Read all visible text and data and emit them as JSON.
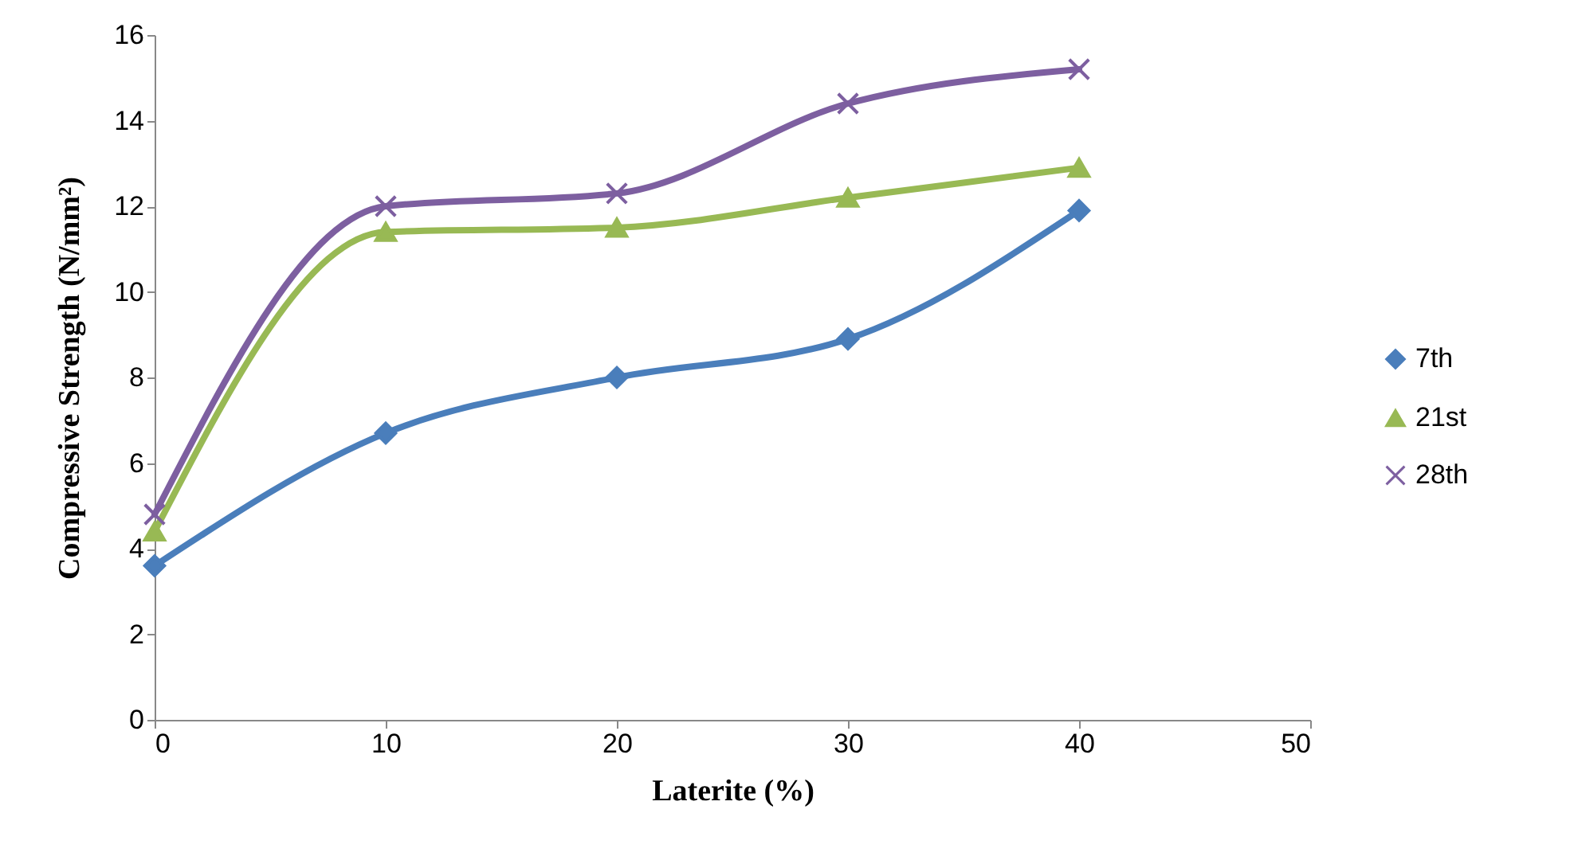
{
  "chart_data": {
    "type": "line",
    "xlabel": "Laterite (%)",
    "ylabel": "Compressive Strength (N/mm²)",
    "x": [
      0,
      10,
      20,
      30,
      40
    ],
    "series": [
      {
        "name": "7th",
        "color": "#4a7ebb",
        "marker": "diamond",
        "values": [
          3.6,
          6.7,
          8.0,
          8.9,
          11.9
        ]
      },
      {
        "name": "21st",
        "color": "#98b954",
        "marker": "triangle",
        "values": [
          4.4,
          11.4,
          11.5,
          12.2,
          12.9
        ]
      },
      {
        "name": "28th",
        "color": "#7d5fa0",
        "marker": "cross",
        "values": [
          4.8,
          12.0,
          12.3,
          14.4,
          15.2
        ]
      }
    ],
    "xlim": [
      0,
      50
    ],
    "xticks": [
      0,
      10,
      20,
      30,
      40,
      50
    ],
    "ylim": [
      0,
      16
    ],
    "yticks": [
      0,
      2,
      4,
      6,
      8,
      10,
      12,
      14,
      16
    ],
    "grid": false,
    "legend": "right",
    "line_style": "solid"
  }
}
